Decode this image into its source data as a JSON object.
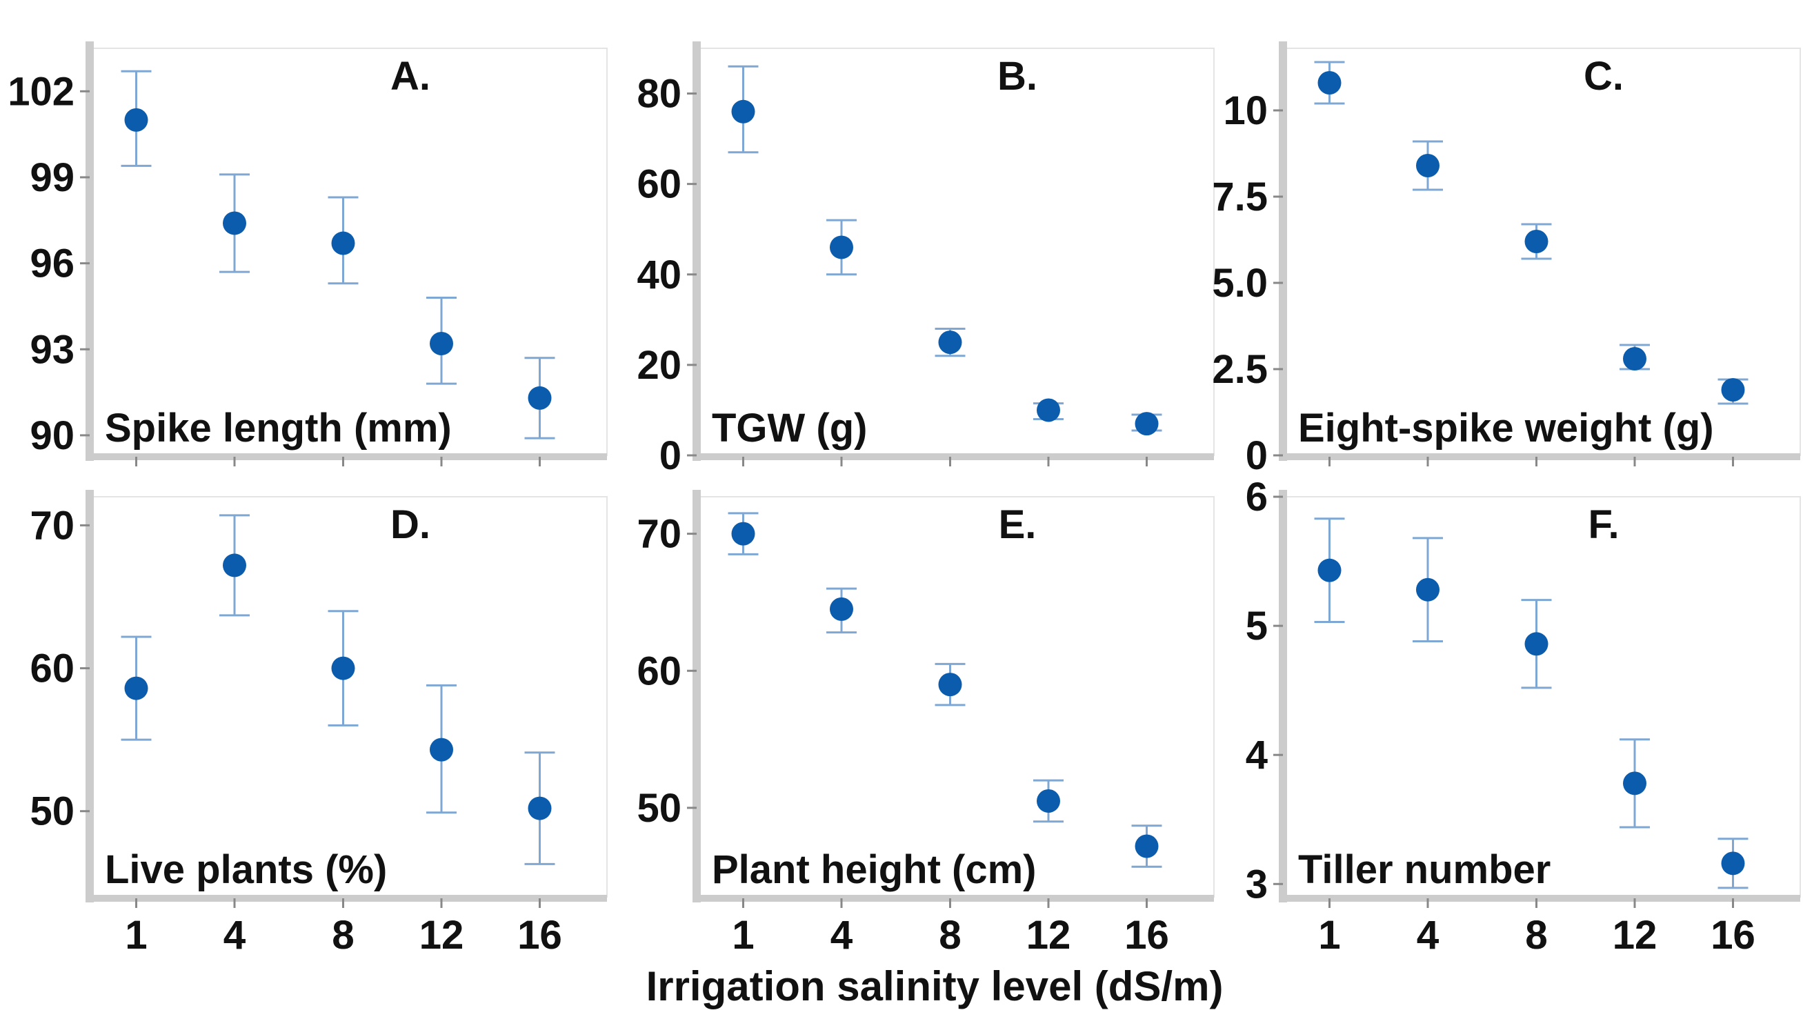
{
  "figure": {
    "xlabel": "Irrigation salinity level (dS/m)",
    "colors": {
      "marker": "#0b5cad",
      "errorbar": "#7fa7d3",
      "frame": "#cccccc",
      "text": "#111111"
    }
  },
  "chart_data": [
    {
      "type": "scatter",
      "letter": "A.",
      "title": "Spike length (mm)",
      "categories": [
        "1",
        "4",
        "8",
        "12",
        "16"
      ],
      "values": [
        101.0,
        97.4,
        96.7,
        93.2,
        91.3
      ],
      "err_low": [
        99.4,
        95.7,
        95.3,
        91.8,
        89.9
      ],
      "err_high": [
        102.7,
        99.1,
        98.3,
        94.8,
        92.7
      ],
      "yticks": [
        90,
        93,
        96,
        99,
        102
      ],
      "ytick_labels": [
        "90",
        "93",
        "96",
        "99",
        "102"
      ],
      "ylim": [
        89.3,
        103.5
      ]
    },
    {
      "type": "scatter",
      "letter": "B.",
      "title": "TGW (g)",
      "categories": [
        "1",
        "4",
        "8",
        "12",
        "16"
      ],
      "values": [
        76,
        46,
        25,
        10,
        7
      ],
      "err_low": [
        67,
        40,
        22,
        8,
        5.5
      ],
      "err_high": [
        86,
        52,
        28,
        11.5,
        9
      ],
      "yticks": [
        0,
        20,
        40,
        60,
        80
      ],
      "ytick_labels": [
        "0",
        "20",
        "40",
        "60",
        "80"
      ],
      "ylim": [
        0,
        90
      ]
    },
    {
      "type": "scatter",
      "letter": "C.",
      "title": "Eight-spike weight (g)",
      "categories": [
        "1",
        "4",
        "8",
        "12",
        "16"
      ],
      "values": [
        10.8,
        8.4,
        6.2,
        2.8,
        1.9
      ],
      "err_low": [
        10.2,
        7.7,
        5.7,
        2.5,
        1.5
      ],
      "err_high": [
        11.4,
        9.1,
        6.7,
        3.2,
        2.2
      ],
      "yticks": [
        0,
        2.5,
        5.0,
        7.5,
        10
      ],
      "ytick_labels": [
        "0",
        "2.5",
        "5.0",
        "7.5",
        "10"
      ],
      "ylim": [
        0,
        11.8
      ]
    },
    {
      "type": "scatter",
      "letter": "D.",
      "title": "Live plants (%)",
      "categories": [
        "1",
        "4",
        "8",
        "12",
        "16"
      ],
      "values": [
        58.6,
        67.2,
        60.0,
        54.3,
        50.2
      ],
      "err_low": [
        55.0,
        63.7,
        56.0,
        49.9,
        46.3
      ],
      "err_high": [
        62.2,
        70.7,
        64.0,
        58.8,
        54.1
      ],
      "yticks": [
        50,
        60,
        70
      ],
      "ytick_labels": [
        "50",
        "60",
        "70"
      ],
      "ylim": [
        44,
        72
      ]
    },
    {
      "type": "scatter",
      "letter": "E.",
      "title": "Plant height (cm)",
      "categories": [
        "1",
        "4",
        "8",
        "12",
        "16"
      ],
      "values": [
        70.0,
        64.5,
        59.0,
        50.5,
        47.2
      ],
      "err_low": [
        68.5,
        62.8,
        57.5,
        49.0,
        45.7
      ],
      "err_high": [
        71.5,
        66.0,
        60.5,
        52.0,
        48.7
      ],
      "yticks": [
        50,
        60,
        70
      ],
      "ytick_labels": [
        "50",
        "60",
        "70"
      ],
      "ylim": [
        43.5,
        72.7
      ]
    },
    {
      "type": "scatter",
      "letter": "F.",
      "title": "Tiller number",
      "categories": [
        "1",
        "4",
        "8",
        "12",
        "16"
      ],
      "values": [
        5.43,
        5.28,
        4.86,
        3.78,
        3.16
      ],
      "err_low": [
        5.03,
        4.88,
        4.52,
        3.44,
        2.97
      ],
      "err_high": [
        5.83,
        5.68,
        5.2,
        4.12,
        3.35
      ],
      "yticks": [
        3,
        4,
        5,
        6
      ],
      "ytick_labels": [
        "3",
        "4",
        "5",
        "6"
      ],
      "ylim": [
        2.9,
        6.0
      ]
    }
  ]
}
